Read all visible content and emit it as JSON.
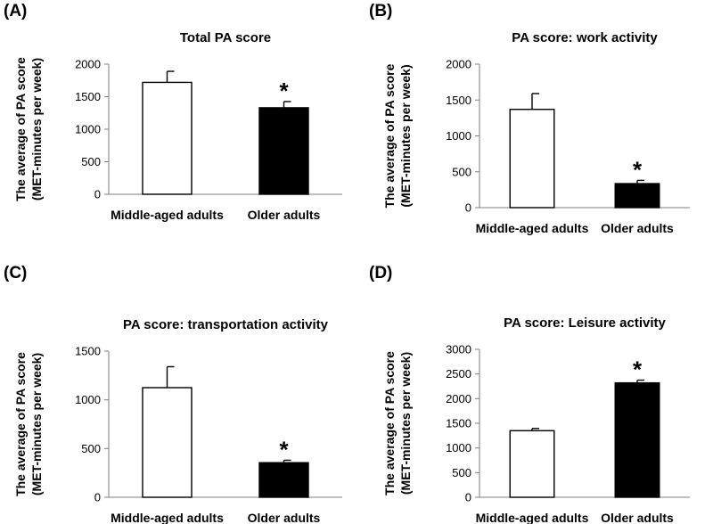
{
  "chart_data": [
    {
      "panel": "(A)",
      "type": "bar",
      "title": "Total PA score",
      "ylabel": [
        "The average of PA score",
        "(MET-minutes per week)"
      ],
      "categories": [
        "Middle-aged adults",
        "Older adults"
      ],
      "values": [
        1720,
        1330
      ],
      "errors": [
        170,
        95
      ],
      "significance": [
        "",
        "*"
      ],
      "bar_colors": [
        "#ffffff",
        "#000000"
      ],
      "ylim": [
        0,
        2000
      ],
      "yticks": [
        0,
        500,
        1000,
        1500,
        2000
      ]
    },
    {
      "panel": "(B)",
      "type": "bar",
      "title": "PA score: work activity",
      "ylabel": [
        "The average of PA score",
        "(MET-minutes per week)"
      ],
      "categories": [
        "Middle-aged adults",
        "Older adults"
      ],
      "values": [
        1370,
        335
      ],
      "errors": [
        220,
        45
      ],
      "significance": [
        "",
        "*"
      ],
      "bar_colors": [
        "#ffffff",
        "#000000"
      ],
      "ylim": [
        0,
        2000
      ],
      "yticks": [
        0,
        500,
        1000,
        1500,
        2000
      ]
    },
    {
      "panel": "(C)",
      "type": "bar",
      "title": "PA score: transportation activity",
      "ylabel": [
        "The average of PA score",
        "(MET-minutes per week)"
      ],
      "categories": [
        "Middle-aged adults",
        "Older adults"
      ],
      "values": [
        1125,
        355
      ],
      "errors": [
        215,
        25
      ],
      "significance": [
        "",
        "*"
      ],
      "bar_colors": [
        "#ffffff",
        "#000000"
      ],
      "ylim": [
        0,
        1500
      ],
      "yticks": [
        0,
        500,
        1000,
        1500
      ]
    },
    {
      "panel": "(D)",
      "type": "bar",
      "title": "PA score: Leisure activity",
      "ylabel": [
        "The average of PA score",
        "(MET-minutes per week)"
      ],
      "categories": [
        "Middle-aged adults",
        "Older adults"
      ],
      "values": [
        1350,
        2320
      ],
      "errors": [
        45,
        55
      ],
      "significance": [
        "",
        "*"
      ],
      "bar_colors": [
        "#ffffff",
        "#000000"
      ],
      "ylim": [
        0,
        3000
      ],
      "yticks": [
        0,
        500,
        1000,
        1500,
        2000,
        2500,
        3000
      ]
    }
  ]
}
